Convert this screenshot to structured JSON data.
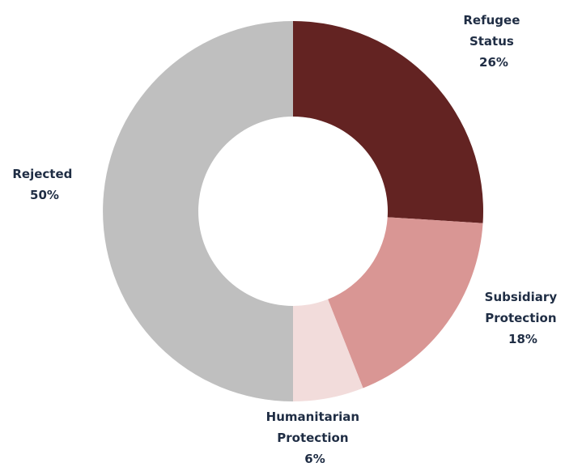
{
  "chart_data": {
    "type": "pie",
    "variant": "donut",
    "title": "",
    "categories": [
      "Refugee Status",
      "Subsidiary Protection",
      "Humanitarian Protection",
      "Rejected"
    ],
    "values": [
      26,
      18,
      6,
      50
    ],
    "unit": "%",
    "legend": "none",
    "slices": [
      {
        "label_lines": [
          "Refugee",
          "Status"
        ],
        "value": 26,
        "value_label": "26%",
        "color": "#632322"
      },
      {
        "label_lines": [
          "Subsidiary",
          "Protection"
        ],
        "value": 18,
        "value_label": "18%",
        "color": "#d99694"
      },
      {
        "label_lines": [
          "Humanitarian",
          "Protection"
        ],
        "value": 6,
        "value_label": "6%",
        "color": "#f2dcdb"
      },
      {
        "label_lines": [
          "Rejected"
        ],
        "value": 50,
        "value_label": "50%",
        "color": "#bfbfbf"
      }
    ],
    "label_color": "#1f2d44"
  }
}
